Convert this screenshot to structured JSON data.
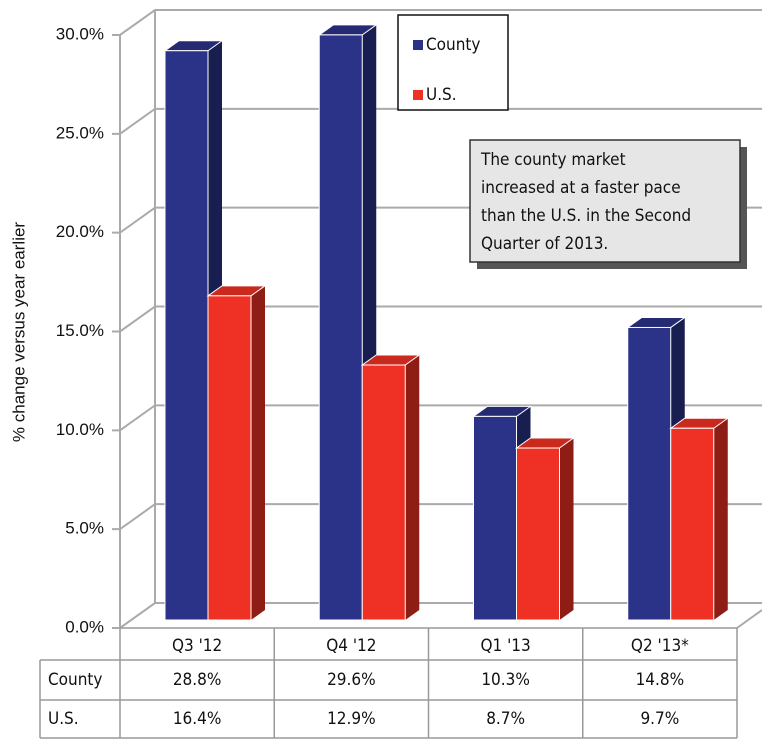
{
  "chart_data": {
    "type": "bar3d",
    "y_label": "% change versus year earlier",
    "categories": [
      "Q3 '12",
      "Q4 '12",
      "Q1 '13",
      "Q2 '13*"
    ],
    "series": [
      {
        "name": "County",
        "color": "#2b3388",
        "values": [
          28.8,
          29.6,
          10.3,
          14.8
        ],
        "value_labels": [
          "28.8%",
          "29.6%",
          "10.3%",
          "14.8%"
        ]
      },
      {
        "name": "U.S.",
        "color": "#ee3124",
        "values": [
          16.4,
          12.9,
          8.7,
          9.7
        ],
        "value_labels": [
          "16.4%",
          "12.9%",
          "8.7%",
          "9.7%"
        ]
      }
    ],
    "ylim": [
      0,
      30
    ],
    "yticks": [
      {
        "value": 0,
        "label": "0.0%"
      },
      {
        "value": 5,
        "label": "5.0%"
      },
      {
        "value": 10,
        "label": "10.0%"
      },
      {
        "value": 15,
        "label": "15.0%"
      },
      {
        "value": 20,
        "label": "20.0%"
      },
      {
        "value": 25,
        "label": "25.0%"
      },
      {
        "value": 30,
        "label": "30.0%"
      }
    ],
    "grid": true,
    "annotation": [
      "The county market",
      "increased at a faster pace",
      "than the U.S. in the Second",
      "Quarter of 2013."
    ]
  }
}
